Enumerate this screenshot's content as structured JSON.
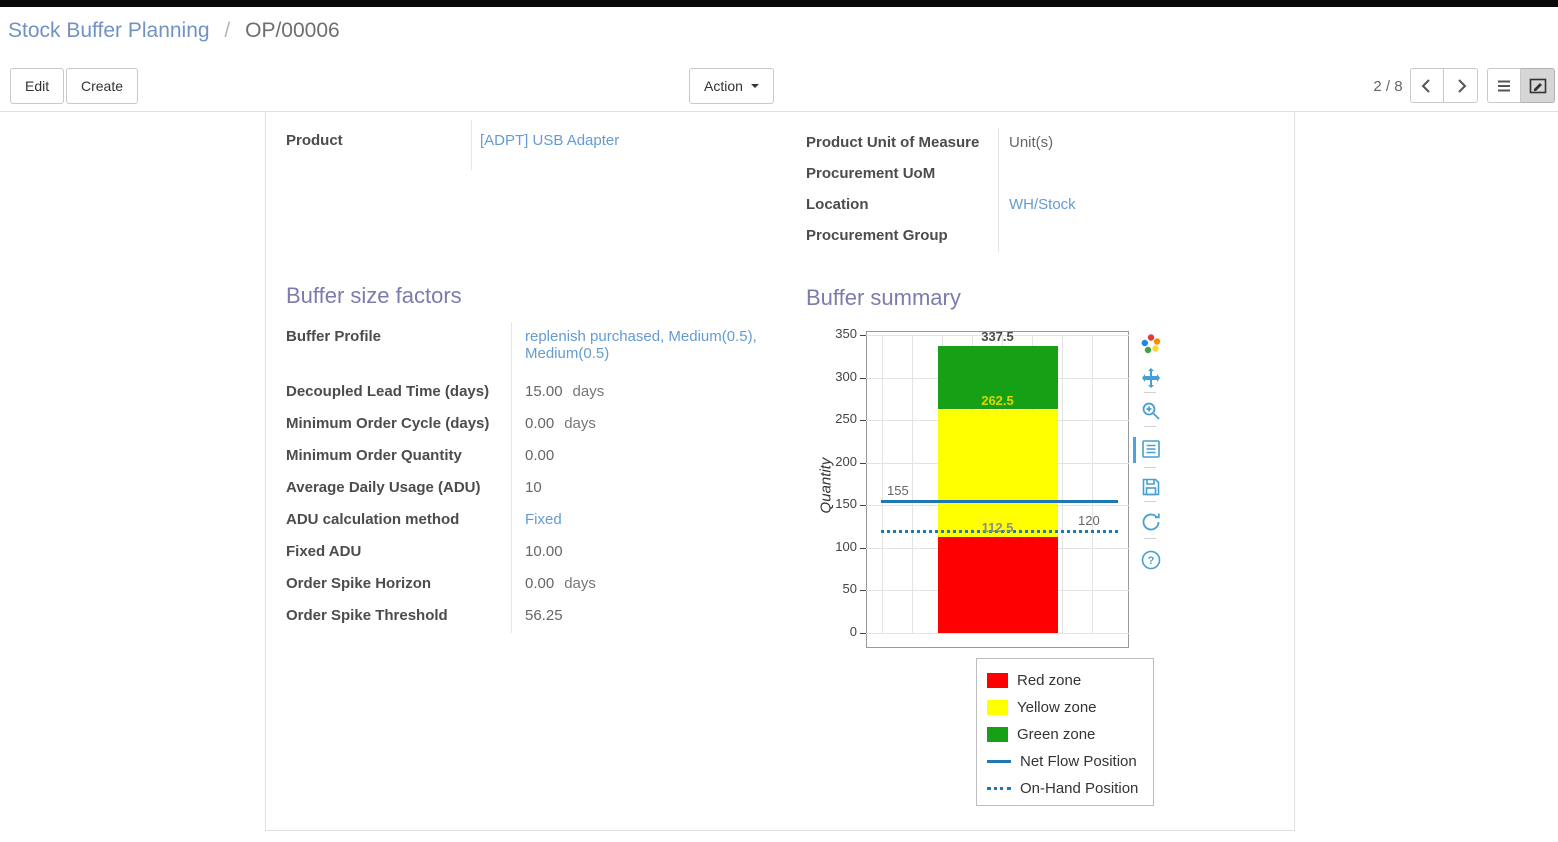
{
  "breadcrumb": {
    "primary": "Stock Buffer Planning",
    "separator": "/",
    "current": "OP/00006"
  },
  "toolbar": {
    "edit_label": "Edit",
    "create_label": "Create",
    "action_label": "Action",
    "pager_value": "2 / 8"
  },
  "form": {
    "sections": {
      "factors_title": "Buffer size factors",
      "summary_title": "Buffer summary"
    },
    "product": {
      "label": "Product",
      "value": "[ADPT] USB Adapter"
    },
    "fields_right": [
      {
        "label": "Product Unit of Measure",
        "value": "Unit(s)"
      },
      {
        "label": "Procurement UoM",
        "value": ""
      },
      {
        "label": "Location",
        "value": "WH/Stock"
      },
      {
        "label": "Procurement Group",
        "value": ""
      }
    ],
    "factors": [
      {
        "label": "Buffer Profile",
        "value": "replenish purchased, Medium(0.5), Medium(0.5)",
        "unit": ""
      },
      {
        "label": "Decoupled Lead Time (days)",
        "value": "15.00",
        "unit": "days"
      },
      {
        "label": "Minimum Order Cycle (days)",
        "value": "0.00",
        "unit": "days"
      },
      {
        "label": "Minimum Order Quantity",
        "value": "0.00",
        "unit": ""
      },
      {
        "label": "Average Daily Usage (ADU)",
        "value": "10",
        "unit": ""
      },
      {
        "label": "ADU calculation method",
        "value": "Fixed",
        "unit": ""
      },
      {
        "label": "Fixed ADU",
        "value": "10.00",
        "unit": ""
      },
      {
        "label": "Order Spike Horizon",
        "value": "0.00",
        "unit": "days"
      },
      {
        "label": "Order Spike Threshold",
        "value": "56.25",
        "unit": ""
      }
    ]
  },
  "chart_data": {
    "type": "bar",
    "title": "",
    "xlabel": "",
    "ylabel": "Quantity",
    "ylim": [
      0,
      350
    ],
    "yticks": [
      0,
      50,
      100,
      150,
      200,
      250,
      300,
      350
    ],
    "grid": true,
    "legend_position": "bottom-right",
    "zones": [
      {
        "name": "Red zone",
        "color": "#ff0000",
        "from": 0,
        "to": 112.5,
        "label": "112.5",
        "label_color": "#8c8c8c"
      },
      {
        "name": "Yellow zone",
        "color": "#ffff00",
        "from": 112.5,
        "to": 262.5,
        "label": "262.5",
        "label_color": "#d8d800"
      },
      {
        "name": "Green zone",
        "color": "#15a015",
        "from": 262.5,
        "to": 337.5,
        "label": "337.5",
        "label_color": "#4a4a4a"
      }
    ],
    "lines": [
      {
        "name": "Net Flow Position",
        "value": 155,
        "style": "solid",
        "color": "#1f77b4",
        "label": "155",
        "label_pos": "left"
      },
      {
        "name": "On-Hand Position",
        "value": 120,
        "style": "dotted",
        "color": "#1f77b4",
        "label": "120",
        "label_pos": "right"
      }
    ]
  },
  "toolbox": {
    "icons": [
      "palette",
      "pan",
      "zoom",
      "data-view",
      "save",
      "restore",
      "help"
    ]
  }
}
